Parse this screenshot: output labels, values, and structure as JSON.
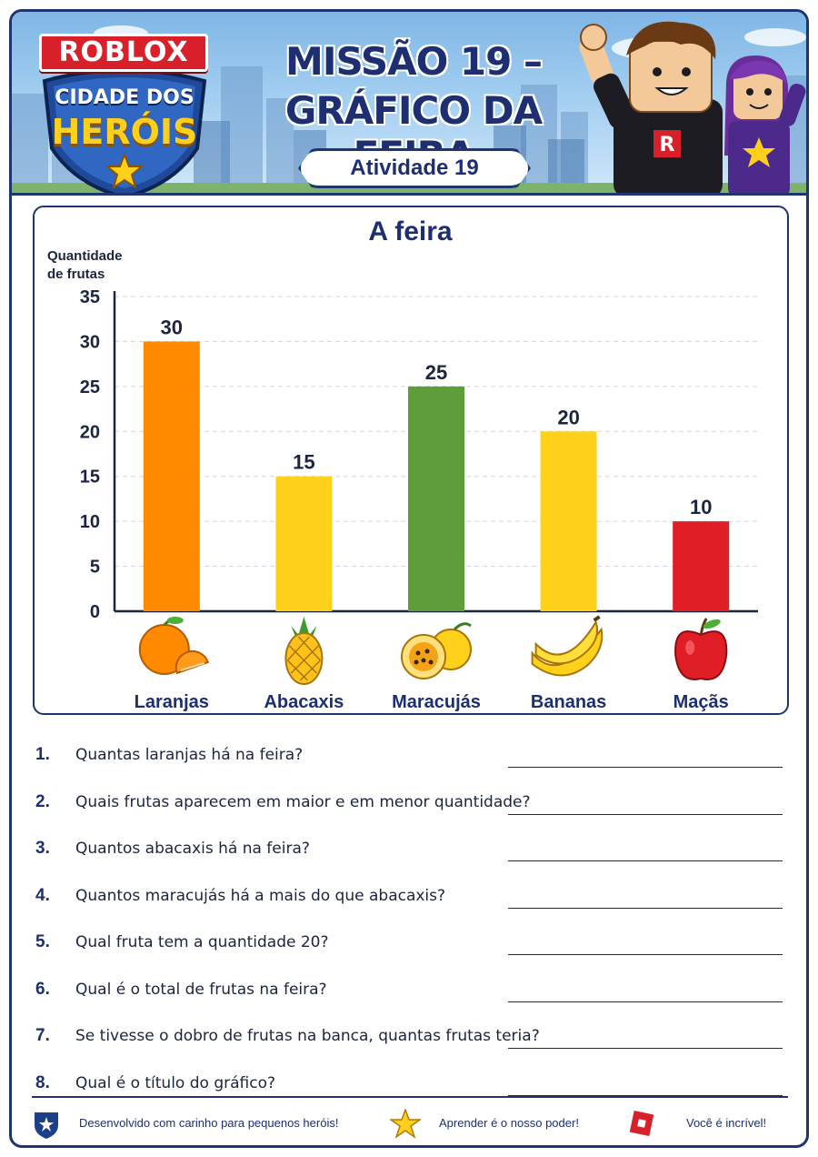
{
  "header": {
    "brand": "ROBLOX",
    "logo_line1": "CIDADE DOS",
    "logo_line2": "HERÓIS",
    "title_line1": "MISSÃO 19 –",
    "title_line2": "GRÁFICO DA FEIRA",
    "activity": "Atividade 19"
  },
  "chart_data": {
    "type": "bar",
    "title": "A feira",
    "ylabel": "Quantidade de frutas",
    "ylabel_lines": [
      "Quantidade",
      "de frutas"
    ],
    "xlabel": "",
    "ylim": [
      0,
      35
    ],
    "yticks": [
      0,
      5,
      10,
      15,
      20,
      25,
      30,
      35
    ],
    "grid": true,
    "categories": [
      "Laranjas",
      "Abacaxis",
      "Maracujás",
      "Bananas",
      "Maçãs"
    ],
    "values": [
      30,
      15,
      25,
      20,
      10
    ],
    "data_labels": [
      "30",
      "15",
      "25",
      "20",
      "10"
    ],
    "colors": [
      "#ff8a00",
      "#ffd11a",
      "#5d9e3a",
      "#ffd11a",
      "#e01e26"
    ],
    "icons": [
      "orange-icon",
      "pineapple-icon",
      "passion-fruit-icon",
      "banana-icon",
      "apple-icon"
    ]
  },
  "questions": [
    {
      "num": "1.",
      "text": "Quantas laranjas há na feira?"
    },
    {
      "num": "2.",
      "text": "Quais frutas aparecem em maior e em menor quantidade?"
    },
    {
      "num": "3.",
      "text": "Quantos abacaxis há na feira?"
    },
    {
      "num": "4.",
      "text": "Quantos maracujás há a mais do que abacaxis?"
    },
    {
      "num": "5.",
      "text": "Qual fruta tem a quantidade 20?"
    },
    {
      "num": "6.",
      "text": "Qual é o total de frutas na feira?"
    },
    {
      "num": "7.",
      "text": "Se tivesse o dobro de frutas na banca, quantas frutas teria?"
    },
    {
      "num": "8.",
      "text": "Qual é o título do gráfico?"
    }
  ],
  "footer": {
    "item1": "Desenvolvido com carinho para pequenos heróis!",
    "item2": "Aprender é o nosso poder!",
    "item3": "Você é incrível!",
    "icons": [
      "shield-star-icon",
      "star-icon",
      "roblox-logo-icon"
    ]
  },
  "colors": {
    "navy": "#1d2f72",
    "border": "#1e3570",
    "sky": "#a9d2f2"
  }
}
